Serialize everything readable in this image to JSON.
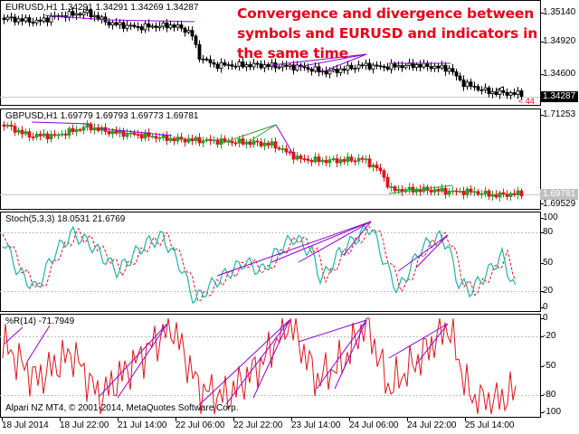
{
  "panes": {
    "eurusd": {
      "header": "EURUSD,H1  1.34291  1.34291  1.34269  1.34287",
      "scale": [
        "1.35140",
        "1.34920",
        "1.34600"
      ],
      "last_price": "1.34287",
      "marker": "< 44"
    },
    "gbpusd": {
      "header": "GBPUSD,H1  1.69779  1.69793  1.69773  1.69781",
      "scale": [
        "1.71253",
        "1.69529"
      ],
      "last_price": "1.69781"
    },
    "stoch": {
      "header": "Stoch(5,3,3)  18.0531  21.6769",
      "scale": [
        "100",
        "80",
        "50",
        "20",
        "0"
      ]
    },
    "wpr": {
      "header": "%R(14)  -71.7949",
      "scale": [
        "0",
        "-20",
        "-50",
        "-80",
        "-100"
      ]
    }
  },
  "promo_text": "Convergence and divergence between symbols and EURUSD and indicators in the same time",
  "copyright": "Alpari NZ MT4, © 2001-2014, MetaQuotes Software Corp.",
  "time_axis": [
    "18 Jul 2014",
    "18 Jul 22:00",
    "21 Jul 14:00",
    "22 Jul 06:00",
    "22 Jul 22:00",
    "23 Jul 14:00",
    "24 Jul 06:00",
    "24 Jul 22:00",
    "25 Jul 14:00"
  ],
  "colors": {
    "bull": "#2a9d2a",
    "bear": "#e0141c",
    "divergence_line": "#9400d3",
    "stoch_main": "#20b2aa",
    "stoch_signal": "#e0141c",
    "wpr_line": "#e0141c",
    "promo_text": "#e8001c"
  }
}
